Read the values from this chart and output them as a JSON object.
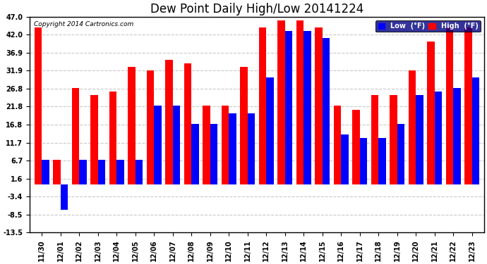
{
  "title": "Dew Point Daily High/Low 20141224",
  "copyright": "Copyright 2014 Cartronics.com",
  "dates": [
    "11/30",
    "12/01",
    "12/02",
    "12/03",
    "12/04",
    "12/05",
    "12/06",
    "12/07",
    "12/08",
    "12/09",
    "12/10",
    "12/11",
    "12/12",
    "12/13",
    "12/14",
    "12/15",
    "12/16",
    "12/17",
    "12/18",
    "12/19",
    "12/20",
    "12/21",
    "12/22",
    "12/23"
  ],
  "high_values": [
    44.0,
    7.0,
    27.0,
    25.0,
    26.0,
    33.0,
    32.0,
    35.0,
    34.0,
    22.0,
    22.0,
    33.0,
    44.0,
    46.0,
    46.0,
    44.0,
    22.0,
    21.0,
    25.0,
    25.0,
    32.0,
    40.0,
    44.0,
    44.0
  ],
  "low_values": [
    7.0,
    -7.0,
    7.0,
    7.0,
    7.0,
    7.0,
    22.0,
    22.0,
    17.0,
    17.0,
    20.0,
    20.0,
    30.0,
    43.0,
    43.0,
    41.0,
    14.0,
    13.0,
    13.0,
    17.0,
    25.0,
    26.0,
    27.0,
    30.0
  ],
  "high_color": "#ff0000",
  "low_color": "#0000ff",
  "background_color": "#ffffff",
  "grid_color": "#c8c8c8",
  "ylim": [
    -13.5,
    47.0
  ],
  "yticks": [
    -13.5,
    -8.5,
    -3.4,
    1.6,
    6.7,
    11.7,
    16.8,
    21.8,
    26.8,
    31.9,
    36.9,
    42.0,
    47.0
  ],
  "title_fontsize": 12,
  "tick_fontsize": 7,
  "bar_width": 0.4,
  "legend_bg": "#000080",
  "figsize": [
    6.9,
    3.75
  ],
  "dpi": 100
}
